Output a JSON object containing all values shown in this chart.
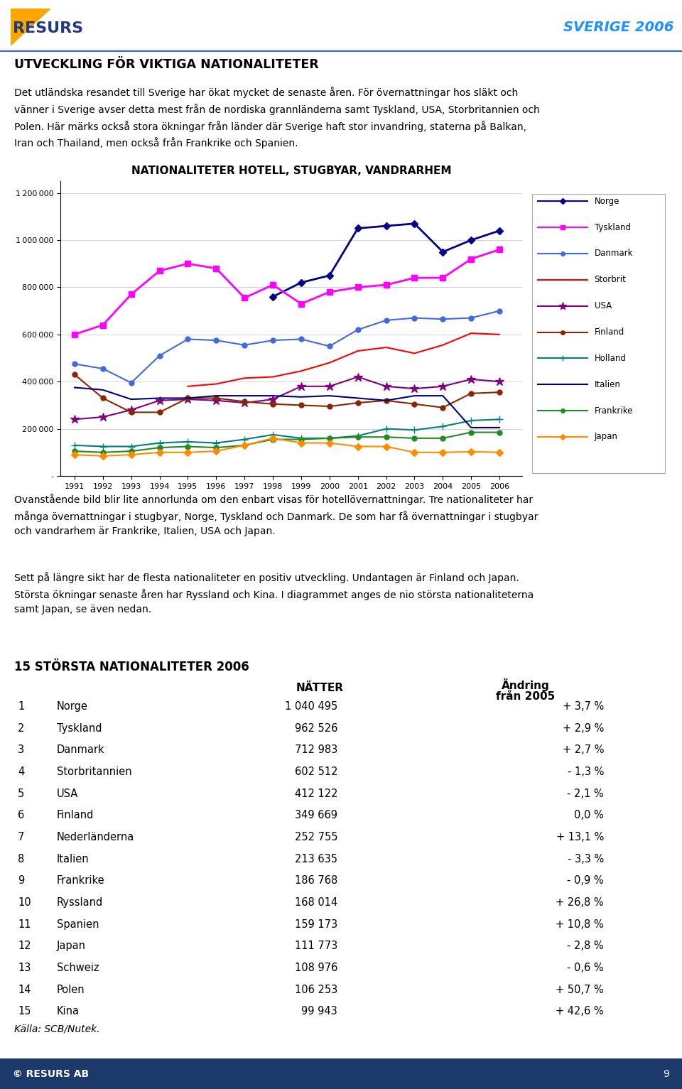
{
  "title": "NATIONALITETER HOTELL, STUGBYAR, VANDRARHEM",
  "years": [
    1991,
    1992,
    1993,
    1994,
    1995,
    1996,
    1997,
    1998,
    1999,
    2000,
    2001,
    2002,
    2003,
    2004,
    2005,
    2006
  ],
  "series": {
    "Norge": {
      "color": "#00008B",
      "marker": "D",
      "markersize": 5,
      "linewidth": 2.0,
      "values": [
        null,
        null,
        null,
        null,
        null,
        null,
        null,
        760000,
        820000,
        850000,
        1050000,
        1060000,
        1070000,
        950000,
        1000000,
        1040000
      ]
    },
    "Tyskland": {
      "color": "#FF00FF",
      "marker": "s",
      "markersize": 6,
      "linewidth": 2.0,
      "values": [
        600000,
        640000,
        770000,
        870000,
        900000,
        880000,
        755000,
        810000,
        730000,
        780000,
        800000,
        810000,
        840000,
        840000,
        920000,
        960000
      ]
    },
    "Danmark": {
      "color": "#4169E1",
      "marker": "o",
      "markersize": 5,
      "linewidth": 1.5,
      "values": [
        475000,
        455000,
        395000,
        510000,
        580000,
        575000,
        555000,
        575000,
        580000,
        550000,
        620000,
        660000,
        670000,
        665000,
        670000,
        700000
      ]
    },
    "Storbrit": {
      "color": "#FF0000",
      "marker": "",
      "markersize": 0,
      "linewidth": 1.5,
      "values": [
        null,
        null,
        null,
        null,
        380000,
        390000,
        415000,
        420000,
        445000,
        480000,
        530000,
        545000,
        520000,
        555000,
        605000,
        600000
      ]
    },
    "USA": {
      "color": "#800080",
      "marker": "*",
      "markersize": 9,
      "linewidth": 1.5,
      "values": [
        240000,
        250000,
        280000,
        320000,
        325000,
        320000,
        310000,
        325000,
        380000,
        380000,
        420000,
        380000,
        370000,
        380000,
        410000,
        400000
      ]
    },
    "Finland": {
      "color": "#8B2500",
      "marker": "o",
      "markersize": 5,
      "linewidth": 1.5,
      "values": [
        430000,
        330000,
        270000,
        270000,
        330000,
        330000,
        315000,
        305000,
        300000,
        295000,
        310000,
        320000,
        305000,
        290000,
        350000,
        355000
      ]
    },
    "Holland": {
      "color": "#008080",
      "marker": "+",
      "markersize": 7,
      "linewidth": 1.5,
      "values": [
        130000,
        125000,
        125000,
        140000,
        145000,
        140000,
        155000,
        175000,
        160000,
        160000,
        170000,
        200000,
        195000,
        210000,
        235000,
        240000
      ]
    },
    "Italien": {
      "color": "#000080",
      "marker": "",
      "markersize": 0,
      "linewidth": 1.5,
      "values": [
        375000,
        365000,
        325000,
        330000,
        330000,
        340000,
        340000,
        340000,
        335000,
        340000,
        330000,
        320000,
        340000,
        340000,
        205000,
        205000
      ]
    },
    "Frankrike": {
      "color": "#228B22",
      "marker": "o",
      "markersize": 5,
      "linewidth": 1.5,
      "values": [
        105000,
        100000,
        105000,
        120000,
        125000,
        120000,
        130000,
        155000,
        155000,
        160000,
        165000,
        165000,
        160000,
        160000,
        185000,
        185000
      ]
    },
    "Japan": {
      "color": "#FF8C00",
      "marker": "D",
      "markersize": 5,
      "linewidth": 1.5,
      "values": [
        90000,
        85000,
        90000,
        100000,
        100000,
        105000,
        130000,
        160000,
        140000,
        140000,
        125000,
        125000,
        100000,
        100000,
        103000,
        100000
      ]
    }
  },
  "header_title": "UTVECKLING FÖR VIKTIGA NATIONALITETER",
  "header_body": "Det utländska resandet till Sverige har ökat mycket de senaste åren. För övernattningar hos släkt och\nvänner i Sverige avser detta mest från de nordiska grannländerna samt Tyskland, USA, Storbritannien och\nPolen. Här märks också stora ökningar från länder där Sverige haft stor invandring, staterna på Balkan,\nIran och Thailand, men också från Frankrike och Spanien.",
  "footer_body1": "Ovanstående bild blir lite annorlunda om den enbart visas för hotellövernattningar. Tre nationaliteter har\nmånga övernattningar i stugbyar, Norge, Tyskland och Danmark. De som har få övernattningar i stugbyar\noch vandrarhem är Frankrike, Italien, USA och Japan.",
  "footer_body2": "Sett på längre sikt har de flesta nationaliteter en positiv utveckling. Undantagen är Finland och Japan.\nStörsta ökningar senaste åren har Ryssland och Kina. I diagrammet anges de nio största nationaliteterna\nsamt Japan, se även nedan.",
  "table_title": "15 STÖRSTA NATIONALITETER 2006",
  "table_col1_header": "NÄTTER",
  "table_col2_header": "Ändring",
  "table_col2_header2": "från 2005",
  "table_rows": [
    [
      "1",
      "Norge",
      "1 040 495",
      "+ 3,7 %"
    ],
    [
      "2",
      "Tyskland",
      "962 526",
      "+ 2,9 %"
    ],
    [
      "3",
      "Danmark",
      "712 983",
      "+ 2,7 %"
    ],
    [
      "4",
      "Storbritannien",
      "602 512",
      "- 1,3 %"
    ],
    [
      "5",
      "USA",
      "412 122",
      "- 2,1 %"
    ],
    [
      "6",
      "Finland",
      "349 669",
      "0,0 %"
    ],
    [
      "7",
      "Nederländerna",
      "252 755",
      "+ 13,1 %"
    ],
    [
      "8",
      "Italien",
      "213 635",
      "- 3,3 %"
    ],
    [
      "9",
      "Frankrike",
      "186 768",
      "- 0,9 %"
    ],
    [
      "10",
      "Ryssland",
      "168 014",
      "+ 26,8 %"
    ],
    [
      "11",
      "Spanien",
      "159 173",
      "+ 10,8 %"
    ],
    [
      "12",
      "Japan",
      "111 773",
      "- 2,8 %"
    ],
    [
      "13",
      "Schweiz",
      "108 976",
      "- 0,6 %"
    ],
    [
      "14",
      "Polen",
      "106 253",
      "+ 50,7 %"
    ],
    [
      "15",
      "Kina",
      "99 943",
      "+ 42,6 %"
    ]
  ],
  "source": "Källa: SCB/Nutek.",
  "page_number": "9",
  "bottom_bar_color": "#1B3A6B",
  "header_line_color": "#4169E1",
  "resurs_text_color": "#1E3A7A",
  "sverige_color": "#1E90FF",
  "triangle_color": "#FFA500"
}
